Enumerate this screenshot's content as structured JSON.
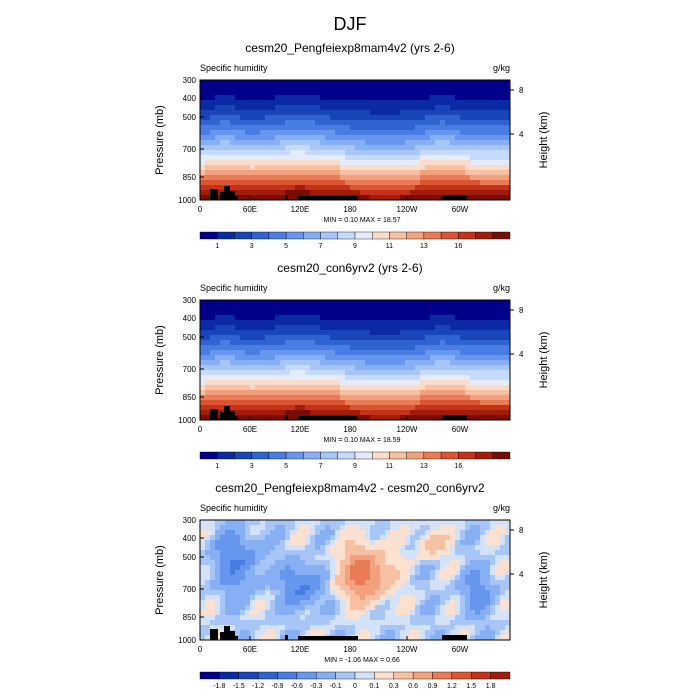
{
  "figure_title": "DJF",
  "chart_data": [
    {
      "type": "heatmap",
      "title": "cesm20_Pengfeiexp8mam4v2 (yrs 2-6)",
      "left_label": "Specific humidity",
      "units": "g/kg",
      "xlabel": "",
      "ylabel": "Pressure (mb)",
      "y2label": "Height (km)",
      "x_ticks": [
        "0",
        "60E",
        "120E",
        "180",
        "120W",
        "60W"
      ],
      "y_ticks": [
        "300",
        "400",
        "500",
        "700",
        "850",
        "1000"
      ],
      "y2_ticks": [
        "8",
        "4"
      ],
      "ylim": [
        1000,
        300
      ],
      "stats": "MIN =   0.10  MAX =  18.57",
      "colorbar_labels": [
        "1",
        "3",
        "5",
        "7",
        "9",
        "11",
        "13",
        "16"
      ],
      "colorbar_colors": [
        "#00008b",
        "#0a2aa3",
        "#1845b8",
        "#2f63d0",
        "#4a7de2",
        "#6796ee",
        "#87aff4",
        "#a7c6f7",
        "#c6dafb",
        "#e4ecfc",
        "#fcdcc8",
        "#f8c0a3",
        "#f3a07d",
        "#eb7b56",
        "#dc5533",
        "#c43319",
        "#a01c0b",
        "#780d05"
      ]
    },
    {
      "type": "heatmap",
      "title": "cesm20_con6yrv2 (yrs 2-6)",
      "left_label": "Specific humidity",
      "units": "g/kg",
      "xlabel": "",
      "ylabel": "Pressure (mb)",
      "y2label": "Height (km)",
      "x_ticks": [
        "0",
        "60E",
        "120E",
        "180",
        "120W",
        "60W"
      ],
      "y_ticks": [
        "300",
        "400",
        "500",
        "700",
        "850",
        "1000"
      ],
      "y2_ticks": [
        "8",
        "4"
      ],
      "ylim": [
        1000,
        300
      ],
      "stats": "MIN =   0.10  MAX =  18.59",
      "colorbar_labels": [
        "1",
        "3",
        "5",
        "7",
        "9",
        "11",
        "13",
        "16"
      ],
      "colorbar_colors": [
        "#00008b",
        "#0a2aa3",
        "#1845b8",
        "#2f63d0",
        "#4a7de2",
        "#6796ee",
        "#87aff4",
        "#a7c6f7",
        "#c6dafb",
        "#e4ecfc",
        "#fcdcc8",
        "#f8c0a3",
        "#f3a07d",
        "#eb7b56",
        "#dc5533",
        "#c43319",
        "#a01c0b",
        "#780d05"
      ]
    },
    {
      "type": "heatmap",
      "title": "cesm20_Pengfeiexp8mam4v2 - cesm20_con6yrv2",
      "left_label": "Specific humidity",
      "units": "g/kg",
      "xlabel": "",
      "ylabel": "Pressure (mb)",
      "y2label": "Height (km)",
      "x_ticks": [
        "0",
        "60E",
        "120E",
        "180",
        "120W",
        "60W"
      ],
      "y_ticks": [
        "300",
        "400",
        "500",
        "700",
        "850",
        "1000"
      ],
      "y2_ticks": [
        "8",
        "4"
      ],
      "ylim": [
        1000,
        300
      ],
      "stats": "MIN =  -1.06  MAX =   0.66",
      "colorbar_labels": [
        "-1.8",
        "-1.5",
        "-1.2",
        "-0.9",
        "-0.6",
        "-0.3",
        "-0.1",
        "0",
        "0.1",
        "0.3",
        "0.6",
        "0.9",
        "1.2",
        "1.5",
        "1.8"
      ],
      "colorbar_colors": [
        "#00008b",
        "#0a2aa3",
        "#1845b8",
        "#2f63d0",
        "#4a7de2",
        "#6796ee",
        "#87aff4",
        "#a7c6f7",
        "#d4e2f8",
        "#fce0d0",
        "#f8c0a3",
        "#f3a07d",
        "#eb7b56",
        "#dc5533",
        "#c43319",
        "#a01c0b"
      ]
    }
  ]
}
